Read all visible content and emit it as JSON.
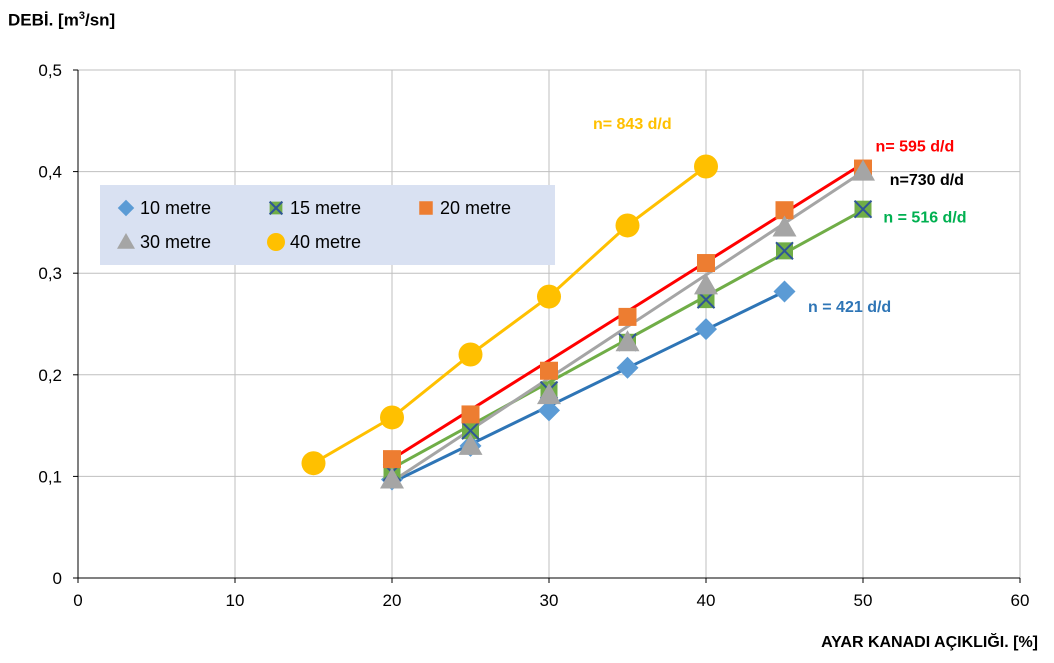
{
  "chart_data": {
    "type": "scatter",
    "ylabel_main": "DEBİ.  [m",
    "ylabel_sup": "3",
    "ylabel_tail": "/sn]",
    "xlabel": "AYAR KANADI AÇIKLIĞI.  [%]",
    "xlim": [
      0,
      60
    ],
    "ylim": [
      0,
      0.5
    ],
    "x_ticks": [
      0,
      10,
      20,
      30,
      40,
      50,
      60
    ],
    "x_tick_labels": [
      "0",
      "10",
      "20",
      "30",
      "40",
      "50",
      "60"
    ],
    "y_ticks": [
      0,
      0.1,
      0.2,
      0.3,
      0.4,
      0.5
    ],
    "y_tick_labels": [
      "0",
      "0,1",
      "0,2",
      "0,3",
      "0,4",
      "0,5"
    ],
    "grid": true,
    "legend_position": "upper-left inside",
    "series": [
      {
        "name": "10 metre",
        "marker": "diamond",
        "color": "#5B9BD5",
        "x": [
          20,
          25,
          30,
          35,
          40,
          45
        ],
        "y": [
          0.097,
          0.13,
          0.165,
          0.207,
          0.245,
          0.282
        ],
        "fit": {
          "x": [
            20,
            45
          ],
          "y": [
            0.094,
            0.282
          ],
          "color": "#2E75B6"
        },
        "annotation": {
          "text": "n = 421 d/d",
          "x": 46.5,
          "y": 0.262,
          "color": "#2E75B6"
        }
      },
      {
        "name": "15 metre",
        "marker": "x-square",
        "color": "#70AD47",
        "x": [
          20,
          25,
          30,
          35,
          40,
          45,
          50
        ],
        "y": [
          0.104,
          0.145,
          0.185,
          0.232,
          0.274,
          0.322,
          0.363
        ],
        "fit": {
          "x": [
            20,
            50
          ],
          "y": [
            0.108,
            0.362
          ],
          "color": "#70AD47"
        },
        "annotation": {
          "text": "n = 516 d/d",
          "x": 51.3,
          "y": 0.35,
          "color": "#00B050"
        }
      },
      {
        "name": "20 metre",
        "marker": "square",
        "color": "#ED7D31",
        "x": [
          20,
          25,
          30,
          35,
          40,
          45,
          50
        ],
        "y": [
          0.117,
          0.161,
          0.204,
          0.257,
          0.31,
          0.362,
          0.403
        ],
        "fit": {
          "x": [
            20,
            50
          ],
          "y": [
            0.117,
            0.408
          ],
          "color": "#FF0000"
        },
        "annotation": {
          "text": "n= 595 d/d",
          "x": 50.8,
          "y": 0.42,
          "color": "#FF0000"
        }
      },
      {
        "name": "30 metre",
        "marker": "triangle",
        "color": "#A5A5A5",
        "x": [
          20,
          25,
          30,
          35,
          40,
          45,
          50
        ],
        "y": [
          0.097,
          0.13,
          0.18,
          0.232,
          0.288,
          0.345,
          0.4
        ],
        "fit": {
          "x": [
            20,
            50
          ],
          "y": [
            0.095,
            0.4
          ],
          "color": "#A5A5A5"
        },
        "annotation": {
          "text": "730 d/d",
          "x": 51.7,
          "y": 0.387,
          "color": "#000000",
          "prefix": "n="
        }
      },
      {
        "name": "40 metre",
        "marker": "circle",
        "color": "#FFC000",
        "x": [
          15,
          20,
          25,
          30,
          35,
          40
        ],
        "y": [
          0.113,
          0.158,
          0.22,
          0.277,
          0.347,
          0.405
        ],
        "fit": {
          "x": [
            15,
            20,
            25,
            30,
            35,
            40
          ],
          "y": [
            0.113,
            0.158,
            0.22,
            0.277,
            0.347,
            0.405
          ],
          "color": "#FFC000"
        },
        "annotation": {
          "text": "n= 843 d/d",
          "x": 32.8,
          "y": 0.442,
          "color": "#FFC000"
        }
      }
    ]
  }
}
